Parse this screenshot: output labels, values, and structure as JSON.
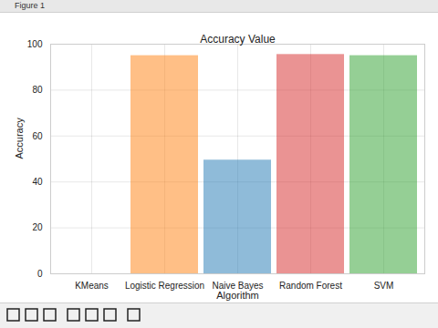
{
  "window_title": "Figure 1",
  "chart_data": {
    "type": "bar",
    "title": "Accuracy Value",
    "x_label": "Algorithm",
    "y_label": "Accuracy",
    "categories": [
      "KMeans",
      "Logistic Regression",
      "Naive Bayes",
      "Random Forest",
      "SVM"
    ],
    "values": [
      0,
      95,
      49.5,
      95.5,
      95
    ],
    "colors": [
      "#1f77b4",
      "#ff7f0e",
      "#1f77b4",
      "#d62728",
      "#2ca02c"
    ],
    "ylim": [
      0,
      100
    ],
    "yticks": [
      0,
      20,
      40,
      60,
      80,
      100
    ],
    "grid": true
  }
}
